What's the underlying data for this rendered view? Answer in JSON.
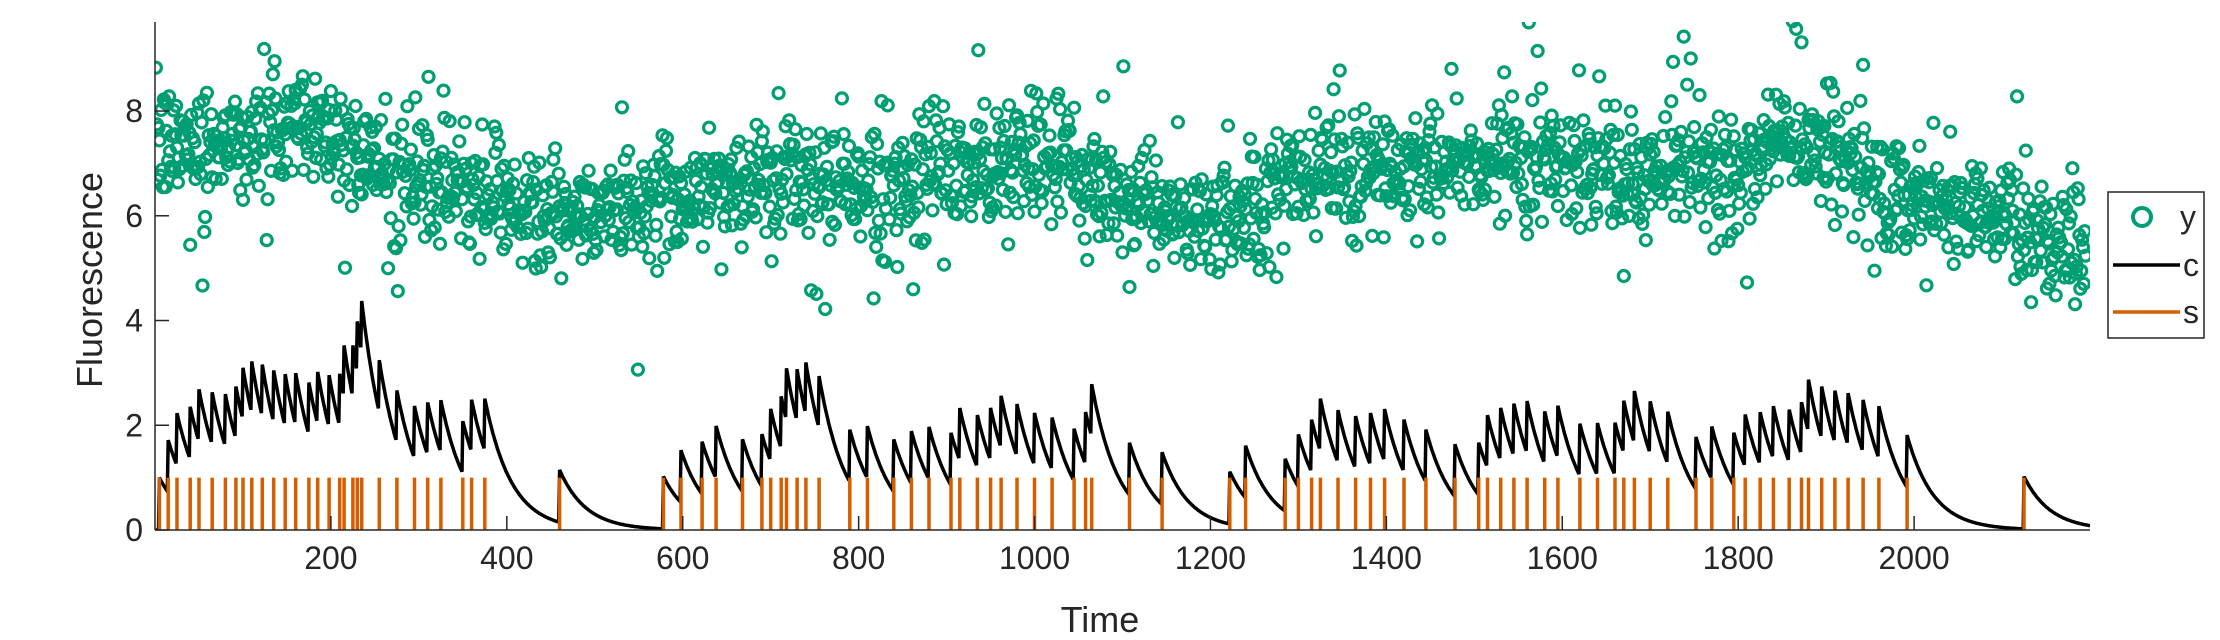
{
  "chart_data": {
    "type": "line",
    "title": "",
    "xlabel": "Time",
    "ylabel": "Fluorescence",
    "xlim": [
      0,
      2200
    ],
    "ylim": [
      0,
      9.7
    ],
    "x_ticks": [
      200,
      400,
      600,
      800,
      1000,
      1200,
      1400,
      1600,
      1800,
      2000
    ],
    "y_ticks": [
      0,
      2,
      4,
      6,
      8
    ],
    "grid": false,
    "legend_position": "right",
    "colors": {
      "y": "#009E73",
      "c": "#000000",
      "s": "#D55E00",
      "axis": "#262626"
    },
    "series": [
      {
        "name": "y",
        "type": "scatter",
        "marker": "circle-open",
        "description_points": "noisy fluorescence samples, one per time step",
        "baseline_profile": {
          "x": [
            0,
            100,
            180,
            260,
            400,
            480,
            560,
            700,
            850,
            1000,
            1100,
            1200,
            1300,
            1450,
            1550,
            1700,
            1800,
            1870,
            1950,
            2050,
            2150,
            2195
          ],
          "y": [
            7.3,
            7.5,
            7.8,
            6.9,
            6.2,
            5.9,
            6.3,
            6.7,
            6.5,
            7.2,
            6.4,
            5.8,
            6.8,
            7.0,
            7.2,
            6.8,
            6.9,
            7.6,
            6.6,
            6.2,
            5.6,
            5.3
          ]
        }
      },
      {
        "name": "c",
        "type": "line",
        "decay_tau": 30,
        "spike_height": 1.0
      },
      {
        "name": "s",
        "type": "spikes",
        "height": 1.0,
        "x": [
          5,
          15,
          25,
          40,
          50,
          65,
          80,
          92,
          100,
          110,
          122,
          135,
          148,
          160,
          175,
          185,
          198,
          210,
          215,
          225,
          230,
          235,
          255,
          275,
          295,
          310,
          325,
          350,
          360,
          375,
          460,
          578,
          598,
          622,
          638,
          668,
          690,
          700,
          712,
          718,
          730,
          740,
          755,
          790,
          810,
          840,
          860,
          880,
          905,
          915,
          935,
          950,
          962,
          980,
          1000,
          1020,
          1045,
          1058,
          1065,
          1108,
          1145,
          1222,
          1240,
          1285,
          1300,
          1315,
          1325,
          1345,
          1365,
          1382,
          1398,
          1420,
          1445,
          1478,
          1505,
          1515,
          1530,
          1545,
          1560,
          1580,
          1595,
          1620,
          1640,
          1660,
          1670,
          1682,
          1700,
          1720,
          1752,
          1770,
          1795,
          1808,
          1825,
          1840,
          1858,
          1872,
          1880,
          1895,
          1910,
          1925,
          1942,
          1960,
          1992,
          2125
        ]
      }
    ]
  },
  "legend": {
    "items": [
      {
        "label": "y",
        "color": "#009E73",
        "marker": "circle"
      },
      {
        "label": "c",
        "color": "#000000",
        "marker": "line"
      },
      {
        "label": "s",
        "color": "#D55E00",
        "marker": "line"
      }
    ]
  }
}
